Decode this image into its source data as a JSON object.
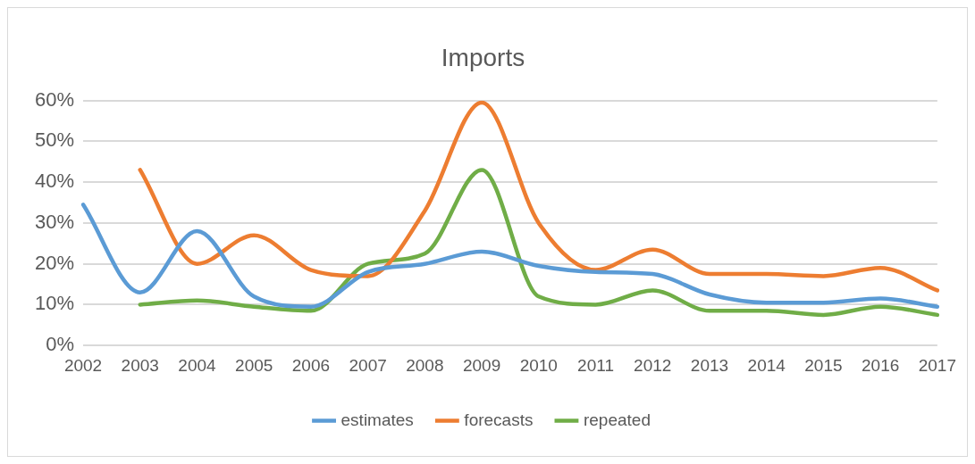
{
  "chart_data": {
    "type": "line",
    "title": "Imports",
    "categories": [
      "2002",
      "2003",
      "2004",
      "2005",
      "2006",
      "2007",
      "2008",
      "2009",
      "2010",
      "2011",
      "2012",
      "2013",
      "2014",
      "2015",
      "2016",
      "2017"
    ],
    "series": [
      {
        "name": "estimates",
        "color": "#5b9bd5",
        "values": [
          34.5,
          13,
          28,
          12,
          9.5,
          18,
          20,
          23,
          19.5,
          18,
          17.5,
          12.5,
          10.5,
          10.5,
          11.5,
          9.5
        ]
      },
      {
        "name": "forecasts",
        "color": "#ed7d31",
        "values": [
          null,
          43,
          20,
          27,
          18.5,
          17,
          33,
          59.5,
          30,
          18.5,
          23.5,
          17.5,
          17.5,
          17,
          19,
          13.5
        ]
      },
      {
        "name": "repeated",
        "color": "#70ad47",
        "values": [
          null,
          10,
          11,
          9.5,
          8.5,
          20,
          22.5,
          43,
          12,
          10,
          13.5,
          8.5,
          8.5,
          7.5,
          9.5,
          7.5
        ]
      }
    ],
    "ylim": [
      0,
      60
    ],
    "yticks": [
      {
        "value": 0,
        "label": "0%"
      },
      {
        "value": 10,
        "label": "10%"
      },
      {
        "value": 20,
        "label": "20%"
      },
      {
        "value": 30,
        "label": "30%"
      },
      {
        "value": 40,
        "label": "40%"
      },
      {
        "value": 50,
        "label": "50%"
      },
      {
        "value": 60,
        "label": "60%"
      }
    ],
    "grid": "y",
    "legend": "bottom",
    "marker": "none",
    "line_style": "solid"
  }
}
